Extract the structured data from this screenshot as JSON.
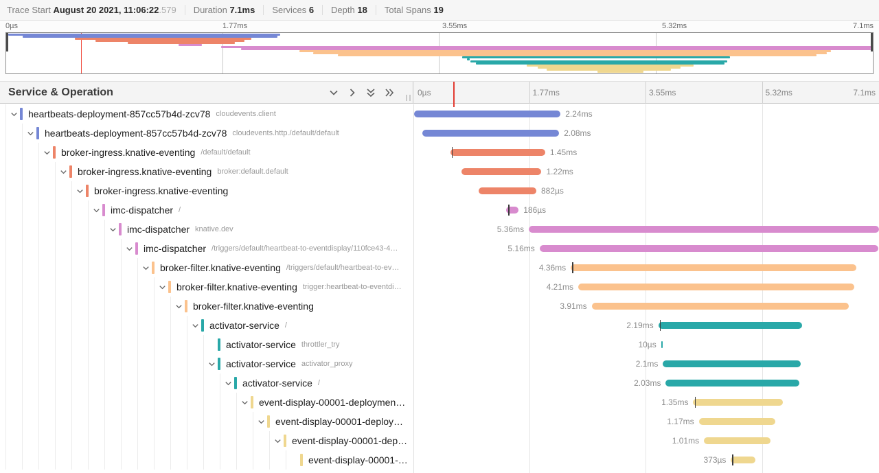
{
  "top_bar": {
    "trace_start_label": "Trace Start",
    "trace_start_datetime": "August 20 2021, 11:06:22",
    "trace_start_fraction": ".579",
    "duration_label": "Duration",
    "duration_value": "7.1ms",
    "services_label": "Services",
    "services_value": "6",
    "depth_label": "Depth",
    "depth_value": "18",
    "spans_label": "Total Spans",
    "spans_value": "19"
  },
  "ticks": [
    "0µs",
    "1.77ms",
    "3.55ms",
    "5.32ms",
    "7.1ms"
  ],
  "cursor_pct": 8.7,
  "table_header": {
    "title": "Service & Operation"
  },
  "colors": {
    "blue": "#7587d5",
    "salmon": "#ed8468",
    "orchid": "#d88bce",
    "peach": "#fbc28d",
    "teal": "#29a8a8",
    "khaki": "#efd78f",
    "cursor": "#e23b31"
  },
  "spans": [
    {
      "depth": 0,
      "service": "heartbeats-deployment-857cc57b4d-zcv78",
      "operation": "cloudevents.client",
      "color": "blue",
      "start": 0.2,
      "end": 31.6,
      "duration": "2.24ms",
      "label_side": "right",
      "leaf": false,
      "tick": null
    },
    {
      "depth": 1,
      "service": "heartbeats-deployment-857cc57b4d-zcv78",
      "operation": "cloudevents.http./default/default",
      "color": "blue",
      "start": 1.9,
      "end": 31.3,
      "duration": "2.08ms",
      "label_side": "right",
      "leaf": false,
      "tick": null
    },
    {
      "depth": 2,
      "service": "broker-ingress.knative-eventing",
      "operation": "/default/default",
      "color": "salmon",
      "start": 7.9,
      "end": 28.3,
      "duration": "1.45ms",
      "label_side": "right",
      "leaf": false,
      "tick": 8.2
    },
    {
      "depth": 3,
      "service": "broker-ingress.knative-eventing",
      "operation": "broker:default.default",
      "color": "salmon",
      "start": 10.3,
      "end": 27.5,
      "duration": "1.22ms",
      "label_side": "right",
      "leaf": false,
      "tick": null
    },
    {
      "depth": 4,
      "service": "broker-ingress.knative-eventing",
      "operation": "",
      "color": "salmon",
      "start": 14.0,
      "end": 26.4,
      "duration": "882µs",
      "label_side": "right",
      "leaf": false,
      "tick": null
    },
    {
      "depth": 5,
      "service": "imc-dispatcher",
      "operation": "/",
      "color": "orchid",
      "start": 19.9,
      "end": 22.6,
      "duration": "186µs",
      "label_side": "right",
      "leaf": false,
      "tick": 20.4
    },
    {
      "depth": 6,
      "service": "imc-dispatcher",
      "operation": "knative.dev",
      "color": "orchid",
      "start": 24.8,
      "end": 100,
      "duration": "5.36ms",
      "label_side": "left",
      "leaf": false,
      "tick": null
    },
    {
      "depth": 7,
      "service": "imc-dispatcher",
      "operation": "/triggers/default/heartbeat-to-eventdisplay/110fce43-4…",
      "color": "orchid",
      "start": 27.1,
      "end": 99.8,
      "duration": "5.16ms",
      "label_side": "left",
      "leaf": false,
      "tick": null
    },
    {
      "depth": 8,
      "service": "broker-filter.knative-eventing",
      "operation": "/triggers/default/heartbeat-to-ev…",
      "color": "peach",
      "start": 33.8,
      "end": 95.2,
      "duration": "4.36ms",
      "label_side": "left",
      "leaf": false,
      "tick": 34.1
    },
    {
      "depth": 9,
      "service": "broker-filter.knative-eventing",
      "operation": "trigger:heartbeat-to-eventdi…",
      "color": "peach",
      "start": 35.4,
      "end": 94.7,
      "duration": "4.21ms",
      "label_side": "left",
      "leaf": false,
      "tick": null
    },
    {
      "depth": 10,
      "service": "broker-filter.knative-eventing",
      "operation": "",
      "color": "peach",
      "start": 38.3,
      "end": 93.5,
      "duration": "3.91ms",
      "label_side": "left",
      "leaf": false,
      "tick": null
    },
    {
      "depth": 11,
      "service": "activator-service",
      "operation": "/",
      "color": "teal",
      "start": 52.6,
      "end": 83.5,
      "duration": "2.19ms",
      "label_side": "left",
      "leaf": false,
      "tick": 52.9
    },
    {
      "depth": 12,
      "service": "activator-service",
      "operation": "throttler_try",
      "color": "teal",
      "start": 53.2,
      "end": 53.5,
      "duration": "10µs",
      "label_side": "left",
      "leaf": true,
      "tick": null
    },
    {
      "depth": 12,
      "service": "activator-service",
      "operation": "activator_proxy",
      "color": "teal",
      "start": 53.6,
      "end": 83.2,
      "duration": "2.1ms",
      "label_side": "left",
      "leaf": false,
      "tick": null
    },
    {
      "depth": 13,
      "service": "activator-service",
      "operation": "/",
      "color": "teal",
      "start": 54.2,
      "end": 82.9,
      "duration": "2.03ms",
      "label_side": "left",
      "leaf": false,
      "tick": null
    },
    {
      "depth": 14,
      "service": "event-display-00001-deploymen…",
      "operation": "",
      "color": "khaki",
      "start": 60.1,
      "end": 79.3,
      "duration": "1.35ms",
      "label_side": "left",
      "leaf": false,
      "tick": 60.4
    },
    {
      "depth": 15,
      "service": "event-display-00001-deploy…",
      "operation": "",
      "color": "khaki",
      "start": 61.3,
      "end": 77.8,
      "duration": "1.17ms",
      "label_side": "left",
      "leaf": false,
      "tick": null
    },
    {
      "depth": 16,
      "service": "event-display-00001-dep…",
      "operation": "",
      "color": "khaki",
      "start": 62.4,
      "end": 76.7,
      "duration": "1.01ms",
      "label_side": "left",
      "leaf": false,
      "tick": null
    },
    {
      "depth": 17,
      "service": "event-display-00001-…",
      "operation": "",
      "color": "khaki",
      "start": 68.2,
      "end": 73.5,
      "duration": "373µs",
      "label_side": "left",
      "leaf": true,
      "tick": 68.5
    }
  ]
}
